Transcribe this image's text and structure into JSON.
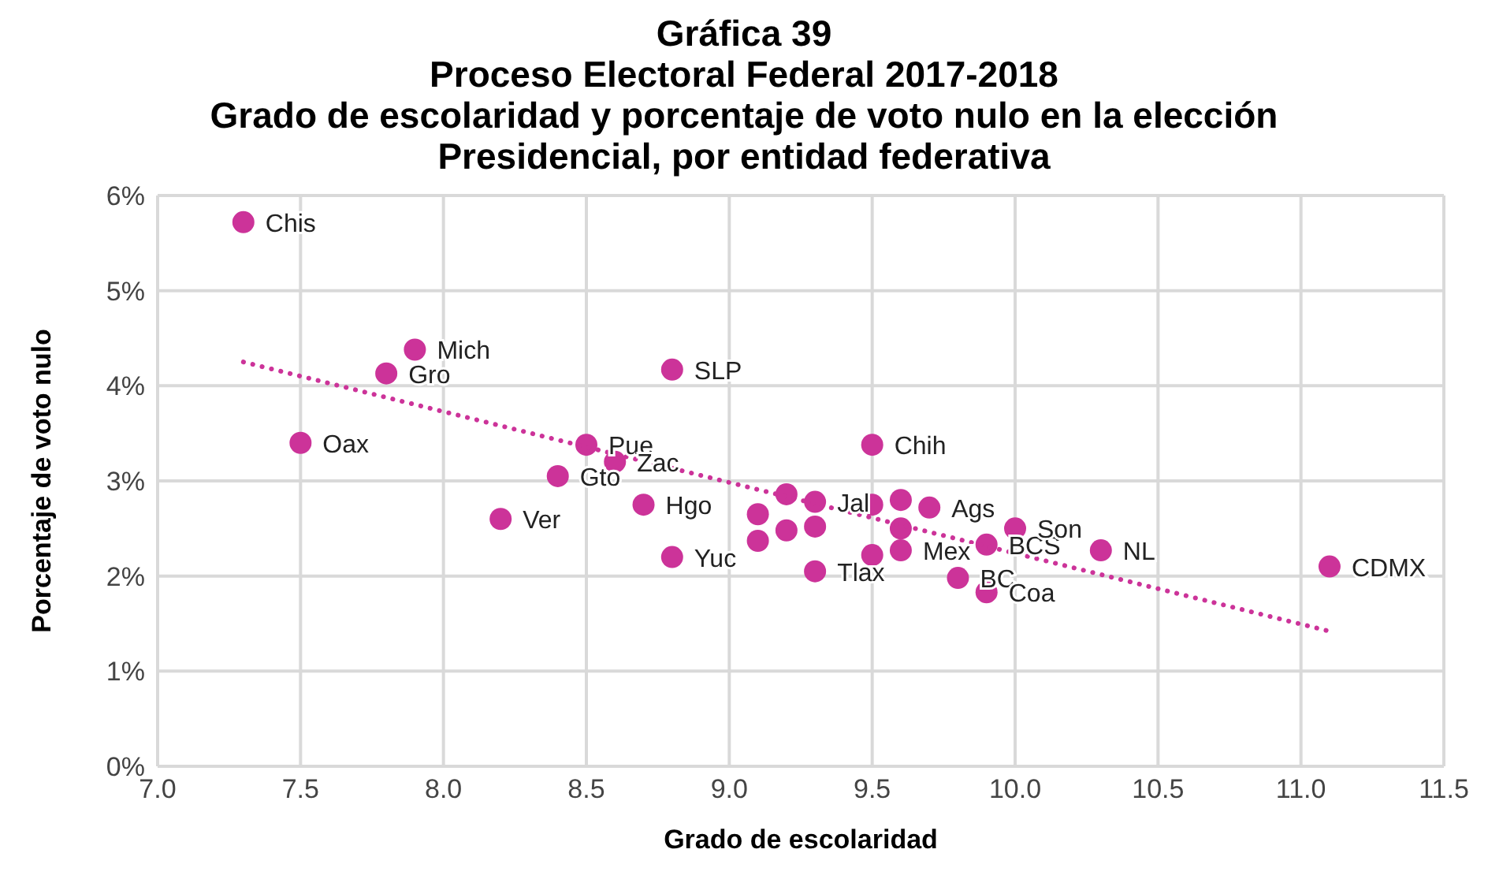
{
  "chart_data": {
    "type": "scatter",
    "title": "Gráfica 39",
    "subtitle": "Proceso Electoral Federal 2017-2018\nGrado de escolaridad y porcentaje de voto nulo en la elección\nPresidencial, por entidad federativa",
    "xlabel": "Grado de escolaridad",
    "ylabel": "Porcentaje de voto nulo",
    "xlim": [
      7,
      11.5
    ],
    "xticks": [
      {
        "value": 7,
        "label": "7.0"
      },
      {
        "value": 7.5,
        "label": "7.5"
      },
      {
        "value": 8,
        "label": "8.0"
      },
      {
        "value": 8.5,
        "label": "8.5"
      },
      {
        "value": 9,
        "label": "9.0"
      },
      {
        "value": 9.5,
        "label": "9.5"
      },
      {
        "value": 10,
        "label": "10.0"
      },
      {
        "value": 10.5,
        "label": "10.5"
      },
      {
        "value": 11,
        "label": "11.0"
      },
      {
        "value": 11.5,
        "label": "11.5"
      }
    ],
    "ylim": [
      0,
      6
    ],
    "yticks": [
      {
        "value": 0,
        "label": "0%"
      },
      {
        "value": 1,
        "label": "1%"
      },
      {
        "value": 2,
        "label": "2%"
      },
      {
        "value": 3,
        "label": "3%"
      },
      {
        "value": 4,
        "label": "4%"
      },
      {
        "value": 5,
        "label": "5%"
      },
      {
        "value": 6,
        "label": "6%"
      }
    ],
    "grid": true,
    "series": [
      {
        "color": "#cc3399",
        "marker": "circle",
        "x": [
          7.3,
          7.9,
          7.8,
          7.5,
          8.8,
          8.5,
          8.6,
          8.4,
          8.2,
          8.7,
          8.8,
          9.5,
          9.3,
          9.3,
          9.6,
          9.7,
          9.8,
          9.9,
          9.9,
          10.0,
          10.3,
          11.1,
          9.1,
          9.1,
          9.2,
          9.2,
          9.3,
          9.5,
          9.5,
          9.6,
          9.6
        ],
        "values": [
          5.72,
          4.38,
          4.13,
          3.4,
          4.17,
          3.38,
          3.2,
          3.05,
          2.6,
          2.75,
          2.2,
          3.38,
          2.78,
          2.05,
          2.27,
          2.72,
          1.98,
          2.33,
          1.83,
          2.5,
          2.27,
          2.1,
          2.65,
          2.37,
          2.86,
          2.48,
          2.52,
          2.75,
          2.22,
          2.8,
          2.5
        ],
        "value_labels": [
          "Chis",
          "Mich",
          "Gro",
          "Oax",
          "SLP",
          "Pue",
          "Zac",
          "Gto",
          "Ver",
          "Hgo",
          "Yuc",
          "Chih",
          "Jal",
          "Tlax",
          "Mex",
          "Ags",
          "BC",
          "BCS",
          "Coa",
          "Son",
          "NL",
          "CDMX",
          null,
          null,
          null,
          null,
          null,
          null,
          null,
          null,
          null
        ]
      },
      {
        "type": "line",
        "color": "#cc3399",
        "marker": "none",
        "line_style": "dotted",
        "x": [
          7.3,
          11.1
        ],
        "values": [
          4.25,
          1.42
        ]
      }
    ]
  }
}
